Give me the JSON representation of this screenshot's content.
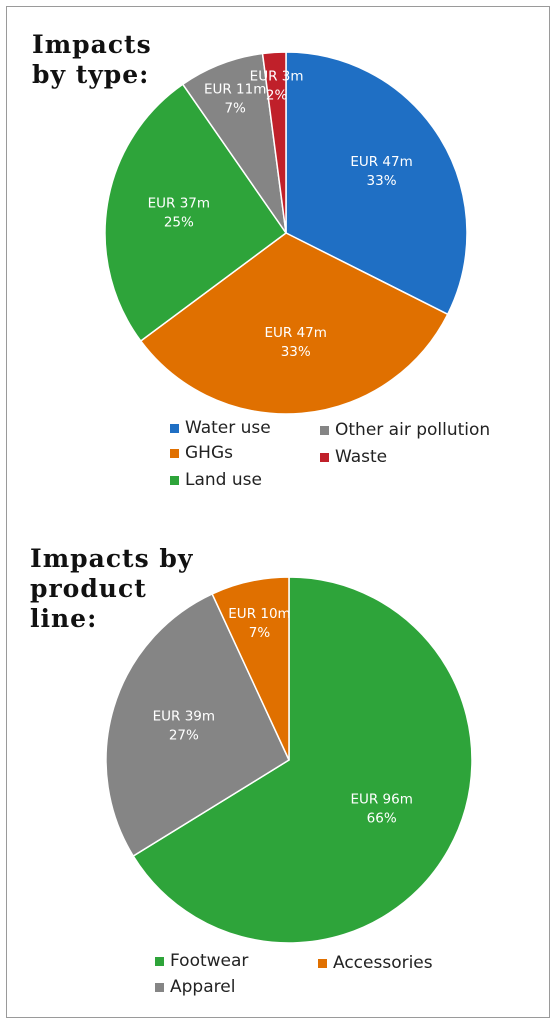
{
  "chart_data": [
    {
      "type": "pie",
      "title": "Impacts by type:",
      "categories": [
        "Water use",
        "GHGs",
        "Land use",
        "Other air pollution",
        "Waste"
      ],
      "values": [
        47,
        47,
        37,
        11,
        3
      ],
      "value_labels": [
        "EUR 47m",
        "EUR 47m",
        "EUR 37m",
        "EUR 11m",
        "EUR 3m"
      ],
      "percent_labels": [
        "33%",
        "33%",
        "25%",
        "7%",
        "2%"
      ],
      "colors": [
        "#1f6fc4",
        "#e07000",
        "#2ea43a",
        "#858585",
        "#c0202a"
      ],
      "legend_position": "bottom"
    },
    {
      "type": "pie",
      "title": "Impacts by product line:",
      "categories": [
        "Footwear",
        "Apparel",
        "Accessories"
      ],
      "values": [
        96,
        39,
        10
      ],
      "value_labels": [
        "EUR 96m",
        "EUR 39m",
        "EUR 10m"
      ],
      "percent_labels": [
        "66%",
        "27%",
        "7%"
      ],
      "colors": [
        "#2ea43a",
        "#858585",
        "#e07000"
      ],
      "legend_position": "bottom"
    }
  ]
}
